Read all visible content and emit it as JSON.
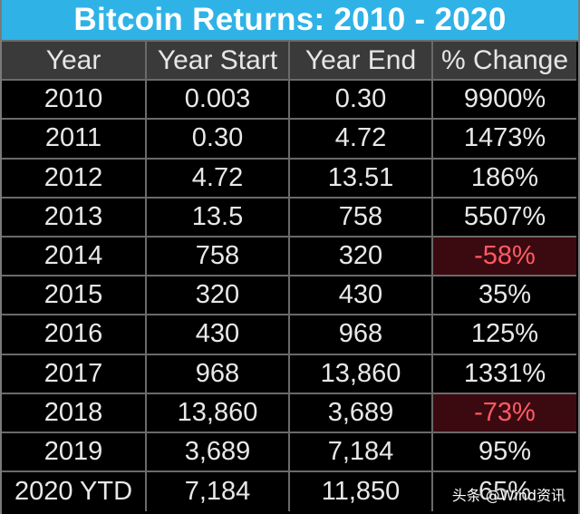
{
  "title": "Bitcoin Returns: 2010 - 2020",
  "colors": {
    "title_bg": "#2fb3e6",
    "header_bg": "#3a3a3a",
    "negative_bg": "#3b0a10",
    "negative_text": "#ff5a64"
  },
  "chart_data": {
    "type": "table",
    "title": "Bitcoin Returns: 2010 - 2020",
    "columns": [
      "Year",
      "Year Start",
      "Year End",
      "% Change"
    ],
    "rows": [
      {
        "year": "2010",
        "start": "0.003",
        "end": "0.30",
        "change": "9900%",
        "negative": false
      },
      {
        "year": "2011",
        "start": "0.30",
        "end": "4.72",
        "change": "1473%",
        "negative": false
      },
      {
        "year": "2012",
        "start": "4.72",
        "end": "13.51",
        "change": "186%",
        "negative": false
      },
      {
        "year": "2013",
        "start": "13.5",
        "end": "758",
        "change": "5507%",
        "negative": false
      },
      {
        "year": "2014",
        "start": "758",
        "end": "320",
        "change": "-58%",
        "negative": true
      },
      {
        "year": "2015",
        "start": "320",
        "end": "430",
        "change": "35%",
        "negative": false
      },
      {
        "year": "2016",
        "start": "430",
        "end": "968",
        "change": "125%",
        "negative": false
      },
      {
        "year": "2017",
        "start": "968",
        "end": "13,860",
        "change": "1331%",
        "negative": false
      },
      {
        "year": "2018",
        "start": "13,860",
        "end": "3,689",
        "change": "-73%",
        "negative": true
      },
      {
        "year": "2019",
        "start": "3,689",
        "end": "7,184",
        "change": "95%",
        "negative": false
      },
      {
        "year": "2020 YTD",
        "start": "7,184",
        "end": "11,850",
        "change": "65%",
        "negative": false
      }
    ]
  },
  "watermark": "头条 @Wind资讯"
}
